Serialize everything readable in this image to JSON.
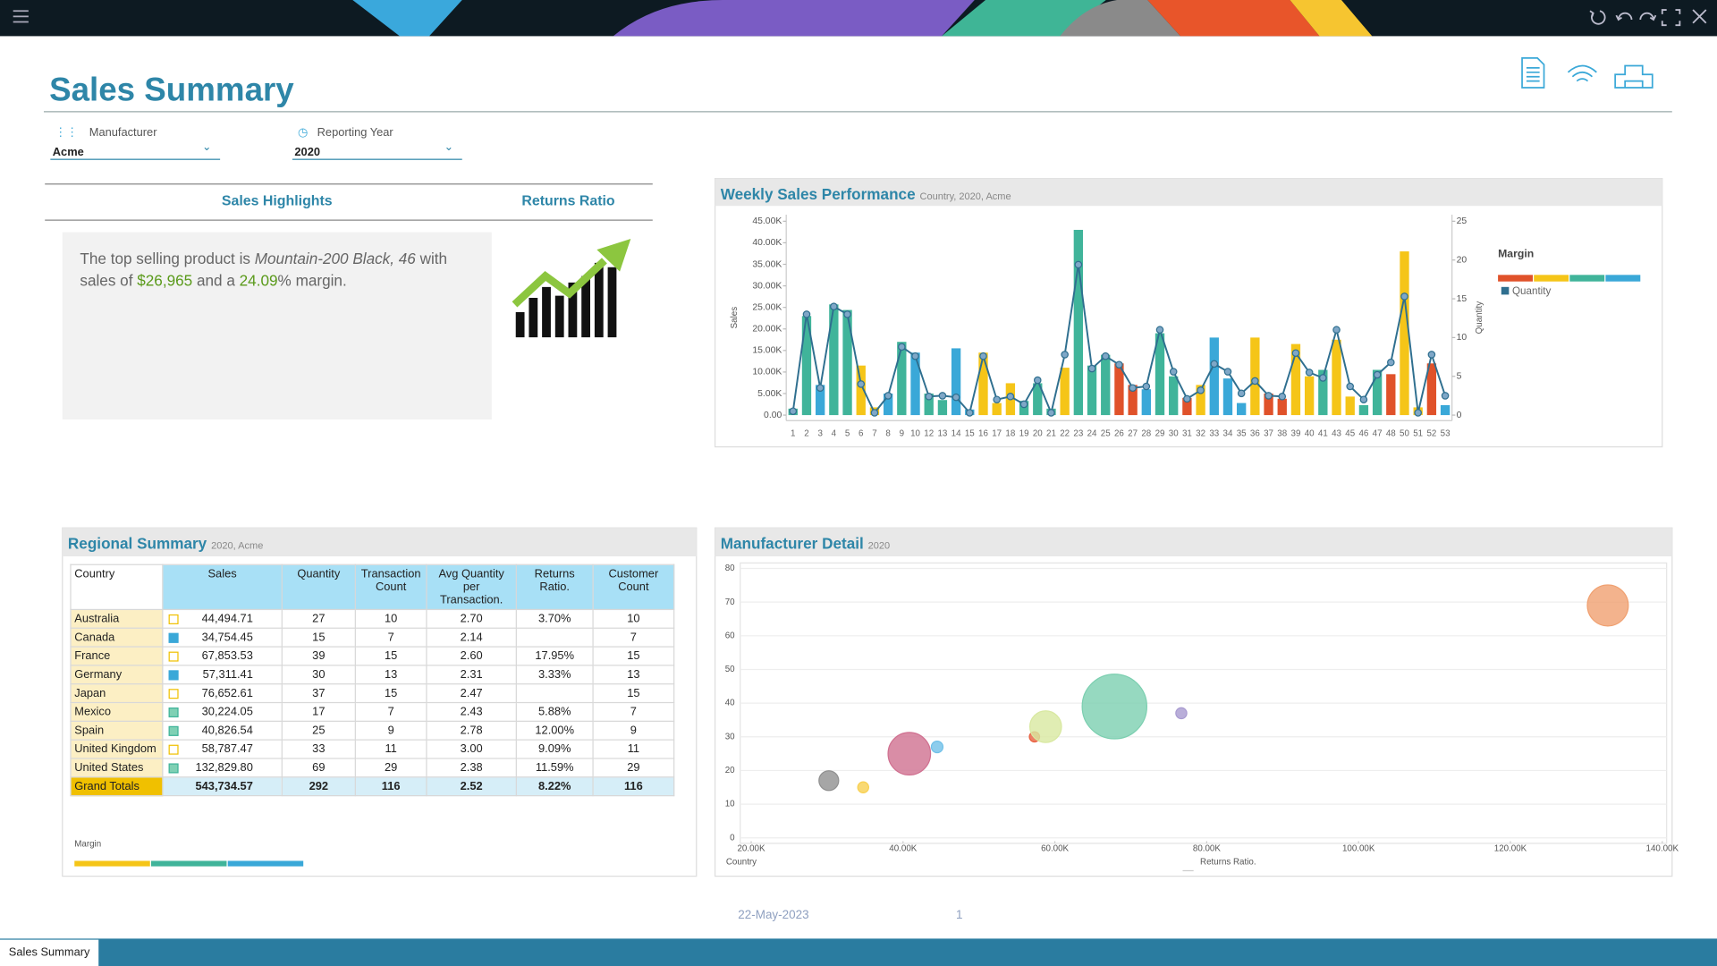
{
  "header": {
    "title": "Sales Summary"
  },
  "filters": [
    {
      "label": "Manufacturer",
      "value": "Acme"
    },
    {
      "label": "Reporting Year",
      "value": "2020"
    }
  ],
  "highlights": {
    "tab1": "Sales Highlights",
    "tab2": "Returns Ratio",
    "text_before": "The top selling product is ",
    "product": "Mountain-200 Black, 46",
    "text_sales": " with sales of ",
    "sales": "$26,965",
    "text_and": " and a ",
    "margin": "24.09",
    "text_after": "% margin."
  },
  "weekly_sales": {
    "type": "bar",
    "title": "Weekly Sales Performance",
    "subtitle": "Country, 2020, Acme",
    "ylabel": "Sales",
    "y2label": "Quantity",
    "categories": [
      "1",
      "2",
      "3",
      "4",
      "5",
      "6",
      "7",
      "8",
      "9",
      "10",
      "12",
      "13",
      "14",
      "15",
      "16",
      "17",
      "18",
      "19",
      "20",
      "21",
      "22",
      "23",
      "24",
      "25",
      "26",
      "27",
      "28",
      "29",
      "30",
      "31",
      "32",
      "33",
      "34",
      "35",
      "36",
      "37",
      "38",
      "39",
      "40",
      "41",
      "43",
      "45",
      "46",
      "47",
      "48",
      "50",
      "51",
      "52",
      "53"
    ],
    "series": [
      {
        "name": "Sales",
        "values": [
          1500,
          23000,
          7000,
          25700,
          24400,
          11500,
          1800,
          5000,
          17000,
          14500,
          5000,
          3500,
          15500,
          1300,
          14500,
          2800,
          7400,
          3300,
          7400,
          1500,
          11000,
          43000,
          11500,
          14000,
          12000,
          7000,
          6000,
          19000,
          9000,
          4000,
          7000,
          18000,
          8500,
          2800,
          18000,
          5000,
          3800,
          16500,
          9000,
          10500,
          17500,
          4300,
          2300,
          10500,
          9500,
          38000,
          1800,
          12000,
          2300
        ],
        "colors": [
          "#40b49a",
          "#40b49a",
          "#3aa8d8",
          "#40b49a",
          "#40b49a",
          "#f5c518",
          "#f5c518",
          "#3aa8d8",
          "#40b49a",
          "#3aa8d8",
          "#40b49a",
          "#40b49a",
          "#3aa8d8",
          "#3aa8d8",
          "#f5c518",
          "#f5c518",
          "#f5c518",
          "#40b49a",
          "#40b49a",
          "#40b49a",
          "#f5c518",
          "#40b49a",
          "#40b49a",
          "#40b49a",
          "#e0522a",
          "#e0522a",
          "#3aa8d8",
          "#40b49a",
          "#40b49a",
          "#e0522a",
          "#f5c518",
          "#3aa8d8",
          "#3aa8d8",
          "#3aa8d8",
          "#f5c518",
          "#e0522a",
          "#e0522a",
          "#f5c518",
          "#f5c518",
          "#40b49a",
          "#f5c518",
          "#f5c518",
          "#40b49a",
          "#40b49a",
          "#e0522a",
          "#f5c518",
          "#f5c518",
          "#e0522a",
          "#3aa8d8"
        ]
      },
      {
        "name": "Quantity",
        "axis": "y2",
        "color": "#2f6f8f",
        "marker_color": "#7fa7c7",
        "values": [
          0.5,
          13,
          3.5,
          14,
          13,
          4,
          0.3,
          2.5,
          8.8,
          7.6,
          2.4,
          2.5,
          2.3,
          0.3,
          7.6,
          2,
          2.4,
          1.4,
          4.5,
          0.3,
          7.8,
          19.4,
          6,
          7.6,
          6.5,
          3.5,
          3.7,
          11,
          5.6,
          2.1,
          3.2,
          6.6,
          5.6,
          2.8,
          4.4,
          2.5,
          2.4,
          8,
          5.5,
          4.8,
          11,
          3.7,
          2,
          5.2,
          6.8,
          15.3,
          0.3,
          7.8,
          2.5
        ]
      }
    ],
    "ylim": [
      0,
      45000
    ],
    "yticks": [
      {
        "value": 0,
        "label": "0.00"
      },
      {
        "value": 5000,
        "label": "5.00K"
      },
      {
        "value": 10000,
        "label": "10.00K"
      },
      {
        "value": 15000,
        "label": "15.00K"
      },
      {
        "value": 20000,
        "label": "20.00K"
      },
      {
        "value": 25000,
        "label": "25.00K"
      },
      {
        "value": 30000,
        "label": "30.00K"
      },
      {
        "value": 35000,
        "label": "35.00K"
      },
      {
        "value": 40000,
        "label": "40.00K"
      },
      {
        "value": 45000,
        "label": "45.00K"
      }
    ],
    "y2lim": [
      0,
      25
    ],
    "y2ticks": [
      0,
      5,
      10,
      15,
      20,
      25
    ],
    "legend": {
      "title": "Margin",
      "colors": [
        "#e0522a",
        "#f5c518",
        "#40b49a",
        "#3aa8d8"
      ]
    }
  },
  "regional": {
    "title": "Regional Summary",
    "subtitle": "2020, Acme",
    "columns": [
      "Country",
      "Sales",
      "Quantity",
      "Transaction Count",
      "Avg Quantity per Transaction.",
      "Returns Ratio.",
      "Customer Count"
    ],
    "rows": [
      [
        "Australia",
        "44,494.71",
        "27",
        "10",
        "2.70",
        "3.70%",
        "10"
      ],
      [
        "Canada",
        "34,754.45",
        "15",
        "7",
        "2.14",
        null,
        "7"
      ],
      [
        "France",
        "67,853.53",
        "39",
        "15",
        "2.60",
        "17.95%",
        "15"
      ],
      [
        "Germany",
        "57,311.41",
        "30",
        "13",
        "2.31",
        "3.33%",
        "13"
      ],
      [
        "Japan",
        "76,652.61",
        "37",
        "15",
        "2.47",
        null,
        "15"
      ],
      [
        "Mexico",
        "30,224.05",
        "17",
        "7",
        "2.43",
        "5.88%",
        "7"
      ],
      [
        "Spain",
        "40,826.54",
        "25",
        "9",
        "2.78",
        "12.00%",
        "9"
      ],
      [
        "United Kingdom",
        "58,787.47",
        "33",
        "11",
        "3.00",
        "9.09%",
        "11"
      ],
      [
        "United States",
        "132,829.80",
        "69",
        "29",
        "2.38",
        "11.59%",
        "29"
      ]
    ],
    "indicators": [
      {
        "fill": "#ffffff",
        "stroke": "#f0c000"
      },
      {
        "fill": "#3aa8d8",
        "stroke": "#3aa8d8"
      },
      {
        "fill": "#ffffff",
        "stroke": "#f0c000"
      },
      {
        "fill": "#3aa8d8",
        "stroke": "#3aa8d8"
      },
      {
        "fill": "#ffffff",
        "stroke": "#f0c000"
      },
      {
        "fill": "#7fd0b4",
        "stroke": "#40b49a"
      },
      {
        "fill": "#7fd0b4",
        "stroke": "#40b49a"
      },
      {
        "fill": "#ffffff",
        "stroke": "#f0c000"
      },
      {
        "fill": "#7fd0b4",
        "stroke": "#40b49a"
      }
    ],
    "totals": [
      "Grand Totals",
      "543,734.57",
      "292",
      "116",
      "2.52",
      "8.22%",
      "116"
    ],
    "legend": {
      "title": "Margin",
      "colors": [
        "#f5c518",
        "#40b49a",
        "#3aa8d8"
      ]
    }
  },
  "manufacturer_detail": {
    "type": "scatter",
    "title": "Manufacturer Detail",
    "subtitle": "2020",
    "legend_color": "Country",
    "legend_size": "Returns Ratio.",
    "points": [
      {
        "x": 44494.71,
        "y": 27,
        "size": 3.7,
        "color": "#70c0e8"
      },
      {
        "x": 34754.45,
        "y": 15,
        "size": null,
        "color": "#f8d050"
      },
      {
        "x": 67853.53,
        "y": 39,
        "size": 17.95,
        "color": "#7ccfb0"
      },
      {
        "x": 57311.41,
        "y": 30,
        "size": 3.33,
        "color": "#e86040"
      },
      {
        "x": 76652.61,
        "y": 37,
        "size": null,
        "color": "#a89ad0"
      },
      {
        "x": 30224.05,
        "y": 17,
        "size": 5.88,
        "color": "#909090"
      },
      {
        "x": 40826.54,
        "y": 25,
        "size": 12.0,
        "color": "#d07090"
      },
      {
        "x": 58787.47,
        "y": 33,
        "size": 9.09,
        "color": "#d8e8a0"
      },
      {
        "x": 132829.8,
        "y": 69,
        "size": 11.59,
        "color": "#f0a070"
      }
    ],
    "xlim": [
      20000,
      140000
    ],
    "xticks": [
      {
        "value": 20000,
        "label": "20.00K"
      },
      {
        "value": 40000,
        "label": "40.00K"
      },
      {
        "value": 60000,
        "label": "60.00K"
      },
      {
        "value": 80000,
        "label": "80.00K"
      },
      {
        "value": 100000,
        "label": "100.00K"
      },
      {
        "value": 120000,
        "label": "120.00K"
      },
      {
        "value": 140000,
        "label": "140.00K"
      }
    ],
    "ylim": [
      0,
      80
    ],
    "yticks": [
      0,
      10,
      20,
      30,
      40,
      50,
      60,
      70,
      80
    ],
    "grid": true
  },
  "footer": {
    "date": "22-May-2023",
    "page": "1",
    "tab": "Sales Summary"
  }
}
